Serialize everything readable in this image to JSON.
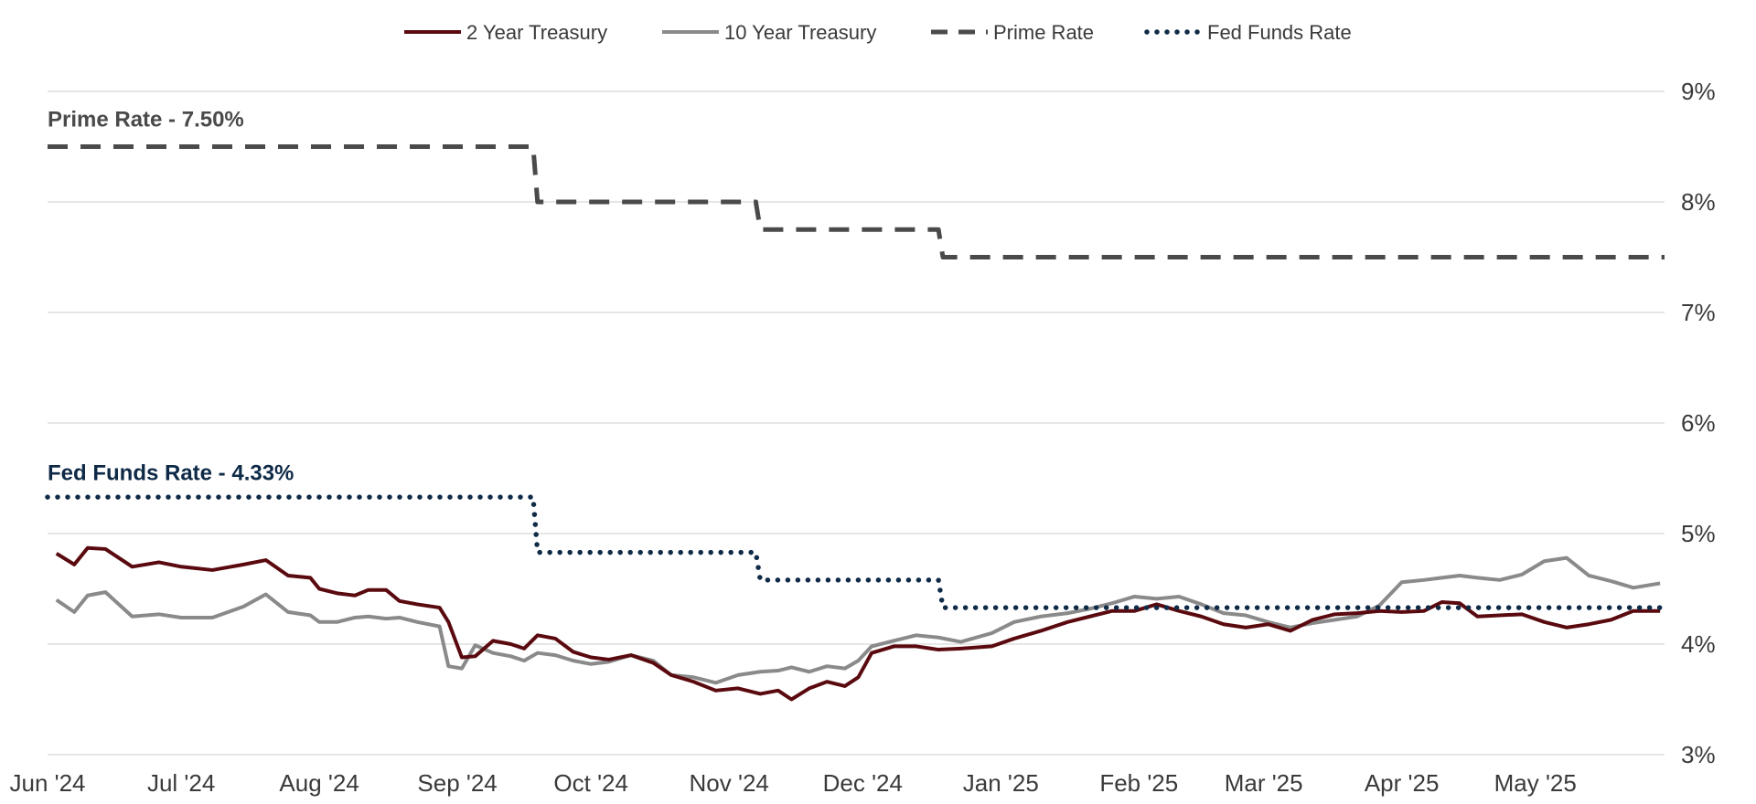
{
  "chart_data": {
    "type": "line",
    "title": "",
    "xlabel": "",
    "ylabel": "",
    "x_axis": {
      "start": "2024-06-01",
      "end": "2025-05-30",
      "tick_labels": [
        "Jun '24",
        "Jul '24",
        "Aug '24",
        "Sep '24",
        "Oct '24",
        "Nov '24",
        "Dec '24",
        "Jan '25",
        "Feb '25",
        "Mar '25",
        "Apr '25",
        "May '25"
      ],
      "tick_dates": [
        "2024-06-01",
        "2024-07-01",
        "2024-08-01",
        "2024-09-01",
        "2024-10-01",
        "2024-11-01",
        "2024-12-01",
        "2025-01-01",
        "2025-02-01",
        "2025-03-01",
        "2025-04-01",
        "2025-05-01"
      ]
    },
    "y_axis": {
      "ylim": [
        3,
        9
      ],
      "ticks": [
        3,
        4,
        5,
        6,
        7,
        8,
        9
      ],
      "tick_labels": [
        "3%",
        "4%",
        "5%",
        "6%",
        "7%",
        "8%",
        "9%"
      ],
      "position": "right",
      "grid": true
    },
    "legend": {
      "placement": "top-center"
    },
    "series": [
      {
        "name": "2 Year Treasury",
        "color": "#5a0a0f",
        "style": "solid",
        "points": [
          [
            "2024-06-03",
            4.82
          ],
          [
            "2024-06-07",
            4.72
          ],
          [
            "2024-06-10",
            4.87
          ],
          [
            "2024-06-14",
            4.86
          ],
          [
            "2024-06-20",
            4.7
          ],
          [
            "2024-06-26",
            4.74
          ],
          [
            "2024-07-01",
            4.7
          ],
          [
            "2024-07-08",
            4.67
          ],
          [
            "2024-07-15",
            4.72
          ],
          [
            "2024-07-20",
            4.76
          ],
          [
            "2024-07-25",
            4.62
          ],
          [
            "2024-07-30",
            4.6
          ],
          [
            "2024-08-01",
            4.5
          ],
          [
            "2024-08-05",
            4.46
          ],
          [
            "2024-08-09",
            4.44
          ],
          [
            "2024-08-12",
            4.49
          ],
          [
            "2024-08-16",
            4.49
          ],
          [
            "2024-08-19",
            4.39
          ],
          [
            "2024-08-23",
            4.36
          ],
          [
            "2024-08-28",
            4.33
          ],
          [
            "2024-08-30",
            4.2
          ],
          [
            "2024-09-02",
            3.88
          ],
          [
            "2024-09-05",
            3.89
          ],
          [
            "2024-09-09",
            4.03
          ],
          [
            "2024-09-13",
            4.0
          ],
          [
            "2024-09-16",
            3.96
          ],
          [
            "2024-09-19",
            4.08
          ],
          [
            "2024-09-23",
            4.05
          ],
          [
            "2024-09-27",
            3.93
          ],
          [
            "2024-10-01",
            3.88
          ],
          [
            "2024-10-05",
            3.86
          ],
          [
            "2024-10-10",
            3.9
          ],
          [
            "2024-10-15",
            3.83
          ],
          [
            "2024-10-19",
            3.72
          ],
          [
            "2024-10-24",
            3.66
          ],
          [
            "2024-10-29",
            3.58
          ],
          [
            "2024-11-03",
            3.6
          ],
          [
            "2024-11-08",
            3.55
          ],
          [
            "2024-11-12",
            3.58
          ],
          [
            "2024-11-15",
            3.5
          ],
          [
            "2024-11-19",
            3.6
          ],
          [
            "2024-11-23",
            3.66
          ],
          [
            "2024-11-27",
            3.62
          ],
          [
            "2024-11-30",
            3.7
          ],
          [
            "2024-12-03",
            3.92
          ],
          [
            "2024-12-08",
            3.98
          ],
          [
            "2024-12-13",
            3.98
          ],
          [
            "2024-12-18",
            3.95
          ],
          [
            "2024-12-23",
            3.96
          ],
          [
            "2024-12-30",
            3.98
          ],
          [
            "2025-01-04",
            4.05
          ],
          [
            "2025-01-10",
            4.12
          ],
          [
            "2025-01-16",
            4.2
          ],
          [
            "2025-01-21",
            4.25
          ],
          [
            "2025-01-26",
            4.3
          ],
          [
            "2025-01-31",
            4.3
          ],
          [
            "2025-02-05",
            4.36
          ],
          [
            "2025-02-10",
            4.3
          ],
          [
            "2025-02-15",
            4.25
          ],
          [
            "2025-02-20",
            4.18
          ],
          [
            "2025-02-25",
            4.15
          ],
          [
            "2025-03-02",
            4.18
          ],
          [
            "2025-03-07",
            4.12
          ],
          [
            "2025-03-12",
            4.22
          ],
          [
            "2025-03-17",
            4.27
          ],
          [
            "2025-03-22",
            4.28
          ],
          [
            "2025-03-27",
            4.3
          ],
          [
            "2025-04-01",
            4.29
          ],
          [
            "2025-04-06",
            4.3
          ],
          [
            "2025-04-10",
            4.38
          ],
          [
            "2025-04-14",
            4.37
          ],
          [
            "2025-04-18",
            4.25
          ],
          [
            "2025-04-23",
            4.26
          ],
          [
            "2025-04-28",
            4.27
          ],
          [
            "2025-05-03",
            4.2
          ],
          [
            "2025-05-08",
            4.15
          ],
          [
            "2025-05-13",
            4.18
          ],
          [
            "2025-05-18",
            4.22
          ],
          [
            "2025-05-23",
            4.3
          ],
          [
            "2025-05-29",
            4.3
          ]
        ]
      },
      {
        "name": "10 Year Treasury",
        "color": "#8a8a8a",
        "style": "solid",
        "points": [
          [
            "2024-06-03",
            4.4
          ],
          [
            "2024-06-07",
            4.29
          ],
          [
            "2024-06-10",
            4.44
          ],
          [
            "2024-06-14",
            4.47
          ],
          [
            "2024-06-20",
            4.25
          ],
          [
            "2024-06-26",
            4.27
          ],
          [
            "2024-07-01",
            4.24
          ],
          [
            "2024-07-08",
            4.24
          ],
          [
            "2024-07-15",
            4.34
          ],
          [
            "2024-07-20",
            4.45
          ],
          [
            "2024-07-25",
            4.29
          ],
          [
            "2024-07-30",
            4.26
          ],
          [
            "2024-08-01",
            4.2
          ],
          [
            "2024-08-05",
            4.2
          ],
          [
            "2024-08-09",
            4.24
          ],
          [
            "2024-08-12",
            4.25
          ],
          [
            "2024-08-16",
            4.23
          ],
          [
            "2024-08-19",
            4.24
          ],
          [
            "2024-08-23",
            4.2
          ],
          [
            "2024-08-28",
            4.16
          ],
          [
            "2024-08-30",
            3.8
          ],
          [
            "2024-09-02",
            3.78
          ],
          [
            "2024-09-05",
            3.99
          ],
          [
            "2024-09-09",
            3.92
          ],
          [
            "2024-09-13",
            3.89
          ],
          [
            "2024-09-16",
            3.85
          ],
          [
            "2024-09-19",
            3.92
          ],
          [
            "2024-09-23",
            3.9
          ],
          [
            "2024-09-27",
            3.85
          ],
          [
            "2024-10-01",
            3.82
          ],
          [
            "2024-10-05",
            3.84
          ],
          [
            "2024-10-10",
            3.9
          ],
          [
            "2024-10-15",
            3.85
          ],
          [
            "2024-10-19",
            3.72
          ],
          [
            "2024-10-24",
            3.7
          ],
          [
            "2024-10-29",
            3.65
          ],
          [
            "2024-11-03",
            3.72
          ],
          [
            "2024-11-08",
            3.75
          ],
          [
            "2024-11-12",
            3.76
          ],
          [
            "2024-11-15",
            3.79
          ],
          [
            "2024-11-19",
            3.75
          ],
          [
            "2024-11-23",
            3.8
          ],
          [
            "2024-11-27",
            3.78
          ],
          [
            "2024-11-30",
            3.85
          ],
          [
            "2024-12-03",
            3.98
          ],
          [
            "2024-12-08",
            4.03
          ],
          [
            "2024-12-13",
            4.08
          ],
          [
            "2024-12-18",
            4.06
          ],
          [
            "2024-12-23",
            4.02
          ],
          [
            "2024-12-30",
            4.1
          ],
          [
            "2025-01-04",
            4.2
          ],
          [
            "2025-01-10",
            4.25
          ],
          [
            "2025-01-16",
            4.28
          ],
          [
            "2025-01-21",
            4.32
          ],
          [
            "2025-01-26",
            4.37
          ],
          [
            "2025-01-31",
            4.43
          ],
          [
            "2025-02-05",
            4.41
          ],
          [
            "2025-02-10",
            4.43
          ],
          [
            "2025-02-15",
            4.36
          ],
          [
            "2025-02-20",
            4.28
          ],
          [
            "2025-02-25",
            4.26
          ],
          [
            "2025-03-02",
            4.2
          ],
          [
            "2025-03-07",
            4.15
          ],
          [
            "2025-03-12",
            4.19
          ],
          [
            "2025-03-17",
            4.22
          ],
          [
            "2025-03-22",
            4.25
          ],
          [
            "2025-03-27",
            4.35
          ],
          [
            "2025-04-01",
            4.56
          ],
          [
            "2025-04-06",
            4.58
          ],
          [
            "2025-04-10",
            4.6
          ],
          [
            "2025-04-14",
            4.62
          ],
          [
            "2025-04-18",
            4.6
          ],
          [
            "2025-04-23",
            4.58
          ],
          [
            "2025-04-28",
            4.63
          ],
          [
            "2025-05-03",
            4.75
          ],
          [
            "2025-05-08",
            4.78
          ],
          [
            "2025-05-13",
            4.62
          ],
          [
            "2025-05-18",
            4.57
          ],
          [
            "2025-05-23",
            4.51
          ],
          [
            "2025-05-29",
            4.55
          ]
        ]
      },
      {
        "name": "Prime Rate",
        "color": "#4a4a4a",
        "style": "dashed",
        "points": [
          [
            "2024-06-01",
            8.5
          ],
          [
            "2024-09-18",
            8.5
          ],
          [
            "2024-09-19",
            8.0
          ],
          [
            "2024-11-07",
            8.0
          ],
          [
            "2024-11-08",
            7.75
          ],
          [
            "2024-12-18",
            7.75
          ],
          [
            "2024-12-19",
            7.5
          ],
          [
            "2025-05-30",
            7.5
          ]
        ]
      },
      {
        "name": "Fed Funds Rate",
        "color": "#0e2a47",
        "style": "dotted",
        "points": [
          [
            "2024-06-01",
            5.33
          ],
          [
            "2024-09-18",
            5.33
          ],
          [
            "2024-09-19",
            4.83
          ],
          [
            "2024-11-07",
            4.83
          ],
          [
            "2024-11-08",
            4.58
          ],
          [
            "2024-12-18",
            4.58
          ],
          [
            "2024-12-19",
            4.33
          ],
          [
            "2025-05-30",
            4.33
          ]
        ]
      }
    ],
    "annotations": [
      {
        "text": "Prime Rate - 7.50%",
        "color": "#4a4a4a",
        "y": 8.75
      },
      {
        "text": "Fed Funds Rate - 4.33%",
        "color": "#0e2a47",
        "y": 5.55
      }
    ]
  }
}
